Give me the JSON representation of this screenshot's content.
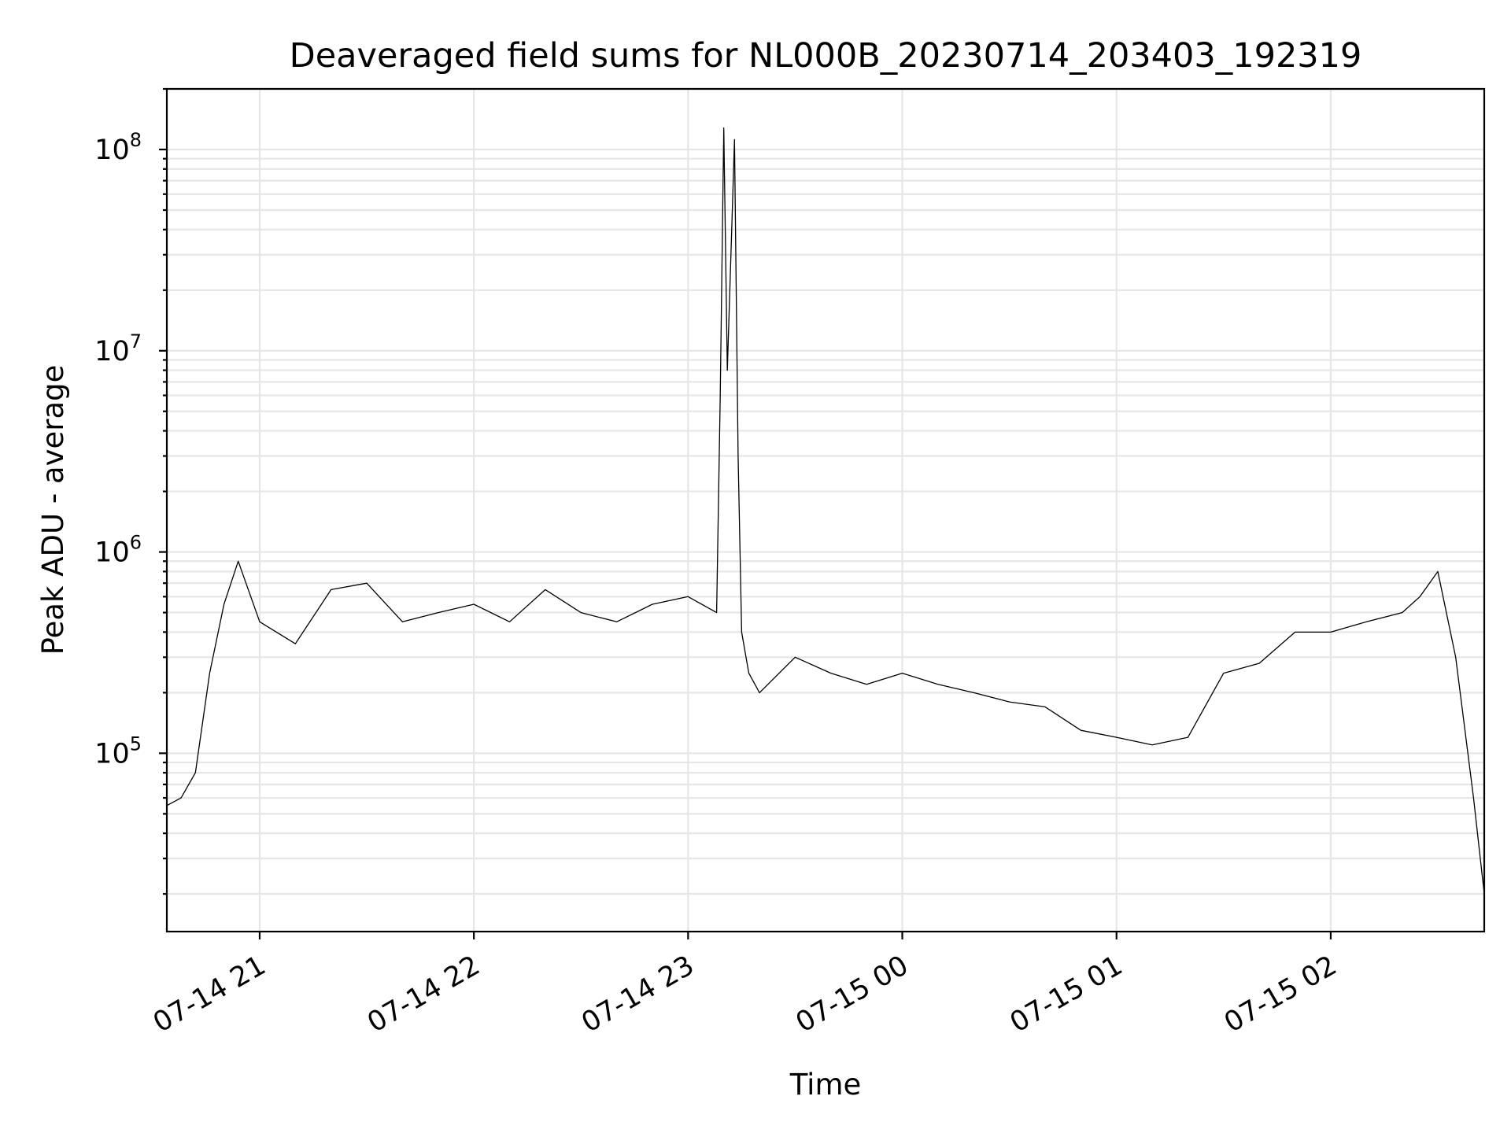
{
  "chart_data": {
    "type": "line",
    "title": "Deaveraged field sums for NL000B_20230714_203403_192319",
    "xlabel": "Time",
    "ylabel": "Peak ADU - average",
    "x_ticks": [
      "07-14 21",
      "07-14 22",
      "07-14 23",
      "07-15 00",
      "07-15 01",
      "07-15 02"
    ],
    "y_ticks": [
      {
        "base": "10",
        "exp": "5",
        "value": 100000
      },
      {
        "base": "10",
        "exp": "6",
        "value": 1000000
      },
      {
        "base": "10",
        "exp": "7",
        "value": 10000000
      },
      {
        "base": "10",
        "exp": "8",
        "value": 100000000
      }
    ],
    "xlim": [
      "2023-07-14 20:34",
      "2023-07-15 02:43"
    ],
    "ylim": [
      13000,
      200000000
    ],
    "yscale": "log",
    "grid": true,
    "color": "#000000",
    "series": [
      {
        "x": [
          "2023-07-14 20:34",
          "2023-07-14 20:38",
          "2023-07-14 20:42",
          "2023-07-14 20:46",
          "2023-07-14 20:50",
          "2023-07-14 20:54",
          "2023-07-14 21:00",
          "2023-07-14 21:10",
          "2023-07-14 21:20",
          "2023-07-14 21:30",
          "2023-07-14 21:40",
          "2023-07-14 21:50",
          "2023-07-14 22:00",
          "2023-07-14 22:10",
          "2023-07-14 22:20",
          "2023-07-14 22:30",
          "2023-07-14 22:40",
          "2023-07-14 22:50",
          "2023-07-14 23:00",
          "2023-07-14 23:08",
          "2023-07-14 23:09",
          "2023-07-14 23:10",
          "2023-07-14 23:11",
          "2023-07-14 23:12",
          "2023-07-14 23:13",
          "2023-07-14 23:14",
          "2023-07-14 23:15",
          "2023-07-14 23:17",
          "2023-07-14 23:20",
          "2023-07-14 23:30",
          "2023-07-14 23:40",
          "2023-07-14 23:50",
          "2023-07-15 00:00",
          "2023-07-15 00:10",
          "2023-07-15 00:20",
          "2023-07-15 00:30",
          "2023-07-15 00:40",
          "2023-07-15 00:50",
          "2023-07-15 01:00",
          "2023-07-15 01:10",
          "2023-07-15 01:20",
          "2023-07-15 01:30",
          "2023-07-15 01:40",
          "2023-07-15 01:50",
          "2023-07-15 02:00",
          "2023-07-15 02:10",
          "2023-07-15 02:20",
          "2023-07-15 02:25",
          "2023-07-15 02:30",
          "2023-07-15 02:35",
          "2023-07-15 02:40",
          "2023-07-15 02:43"
        ],
        "y": [
          55000,
          60000,
          80000,
          250000,
          550000,
          900000,
          450000,
          350000,
          650000,
          700000,
          450000,
          500000,
          550000,
          450000,
          650000,
          500000,
          450000,
          550000,
          600000,
          500000,
          6000000,
          128000000,
          8000000,
          30000000,
          112000000,
          3000000,
          400000,
          250000,
          200000,
          300000,
          250000,
          220000,
          250000,
          220000,
          200000,
          180000,
          170000,
          130000,
          120000,
          110000,
          120000,
          250000,
          280000,
          400000,
          400000,
          450000,
          500000,
          600000,
          800000,
          300000,
          60000,
          20000
        ]
      }
    ]
  }
}
